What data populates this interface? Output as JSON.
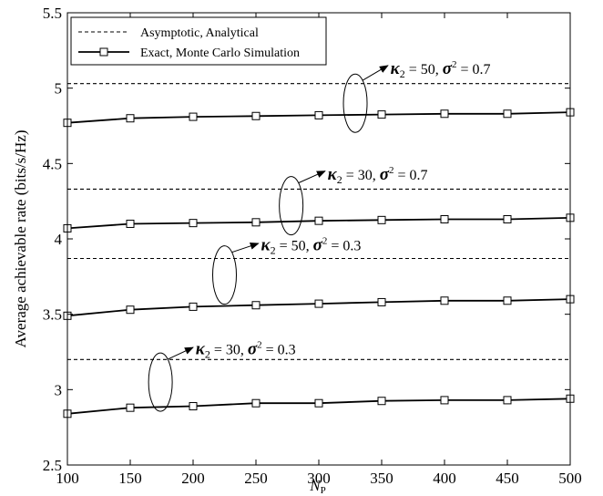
{
  "chart_data": {
    "type": "line",
    "xlabel": "N",
    "xlabel_sub": "P",
    "ylabel": "Average achievable rate (bits/s/Hz)",
    "xlim": [
      100,
      500
    ],
    "ylim": [
      2.5,
      5.5
    ],
    "xticks": [
      100,
      150,
      200,
      250,
      300,
      350,
      400,
      450,
      500
    ],
    "yticks": [
      2.5,
      3,
      3.5,
      4,
      4.5,
      5,
      5.5
    ],
    "ytick_labels": [
      "2.5",
      "3",
      "3.5",
      "4",
      "4.5",
      "5",
      "5.5"
    ],
    "grid": false,
    "legend_position": "top-left",
    "legend": [
      {
        "label": "Asymptotic, Analytical",
        "style": "dashed"
      },
      {
        "label": "Exact, Monte Carlo Simulation",
        "style": "solid-square-marker"
      }
    ],
    "x": [
      100,
      150,
      200,
      250,
      300,
      350,
      400,
      450,
      500
    ],
    "series": [
      {
        "group": "kappa2=50, sigma2=0.7",
        "kind": "asymptotic",
        "values": [
          5.03,
          5.03,
          5.03,
          5.03,
          5.03,
          5.03,
          5.03,
          5.03,
          5.03
        ]
      },
      {
        "group": "kappa2=50, sigma2=0.7",
        "kind": "exact",
        "values": [
          4.77,
          4.8,
          4.81,
          4.815,
          4.82,
          4.825,
          4.83,
          4.83,
          4.84
        ]
      },
      {
        "group": "kappa2=30, sigma2=0.7",
        "kind": "asymptotic",
        "values": [
          4.33,
          4.33,
          4.33,
          4.33,
          4.33,
          4.33,
          4.33,
          4.33,
          4.33
        ]
      },
      {
        "group": "kappa2=30, sigma2=0.7",
        "kind": "exact",
        "values": [
          4.07,
          4.1,
          4.105,
          4.11,
          4.12,
          4.125,
          4.13,
          4.13,
          4.14
        ]
      },
      {
        "group": "kappa2=50, sigma2=0.3",
        "kind": "asymptotic",
        "values": [
          3.87,
          3.87,
          3.87,
          3.87,
          3.87,
          3.87,
          3.87,
          3.87,
          3.87
        ]
      },
      {
        "group": "kappa2=50, sigma2=0.3",
        "kind": "exact",
        "values": [
          3.49,
          3.53,
          3.55,
          3.56,
          3.57,
          3.58,
          3.59,
          3.59,
          3.6
        ]
      },
      {
        "group": "kappa2=30, sigma2=0.3",
        "kind": "asymptotic",
        "values": [
          3.2,
          3.2,
          3.2,
          3.2,
          3.2,
          3.2,
          3.2,
          3.2,
          3.2
        ]
      },
      {
        "group": "kappa2=30, sigma2=0.3",
        "kind": "exact",
        "values": [
          2.84,
          2.88,
          2.89,
          2.91,
          2.91,
          2.925,
          2.93,
          2.93,
          2.94
        ]
      }
    ],
    "annotations": [
      {
        "kappa_value": "50",
        "sigma_value": "0.7",
        "ellipse_center": [
          329,
          4.9
        ],
        "arrow_to": [
          355,
          5.15
        ],
        "text_at": [
          357,
          5.13
        ]
      },
      {
        "kappa_value": "30",
        "sigma_value": "0.7",
        "ellipse_center": [
          278,
          4.22
        ],
        "arrow_to": [
          305,
          4.45
        ],
        "text_at": [
          307,
          4.43
        ]
      },
      {
        "kappa_value": "50",
        "sigma_value": "0.3",
        "ellipse_center": [
          225,
          3.76
        ],
        "arrow_to": [
          252,
          3.97
        ],
        "text_at": [
          254,
          3.96
        ]
      },
      {
        "kappa_value": "30",
        "sigma_value": "0.3",
        "ellipse_center": [
          174,
          3.05
        ],
        "arrow_to": [
          200,
          3.28
        ],
        "text_at": [
          202,
          3.27
        ]
      }
    ],
    "annotation_template": {
      "kappa": "κ",
      "kappa_sub": "2",
      "sigma": "σ",
      "sigma_sup": "2"
    }
  }
}
